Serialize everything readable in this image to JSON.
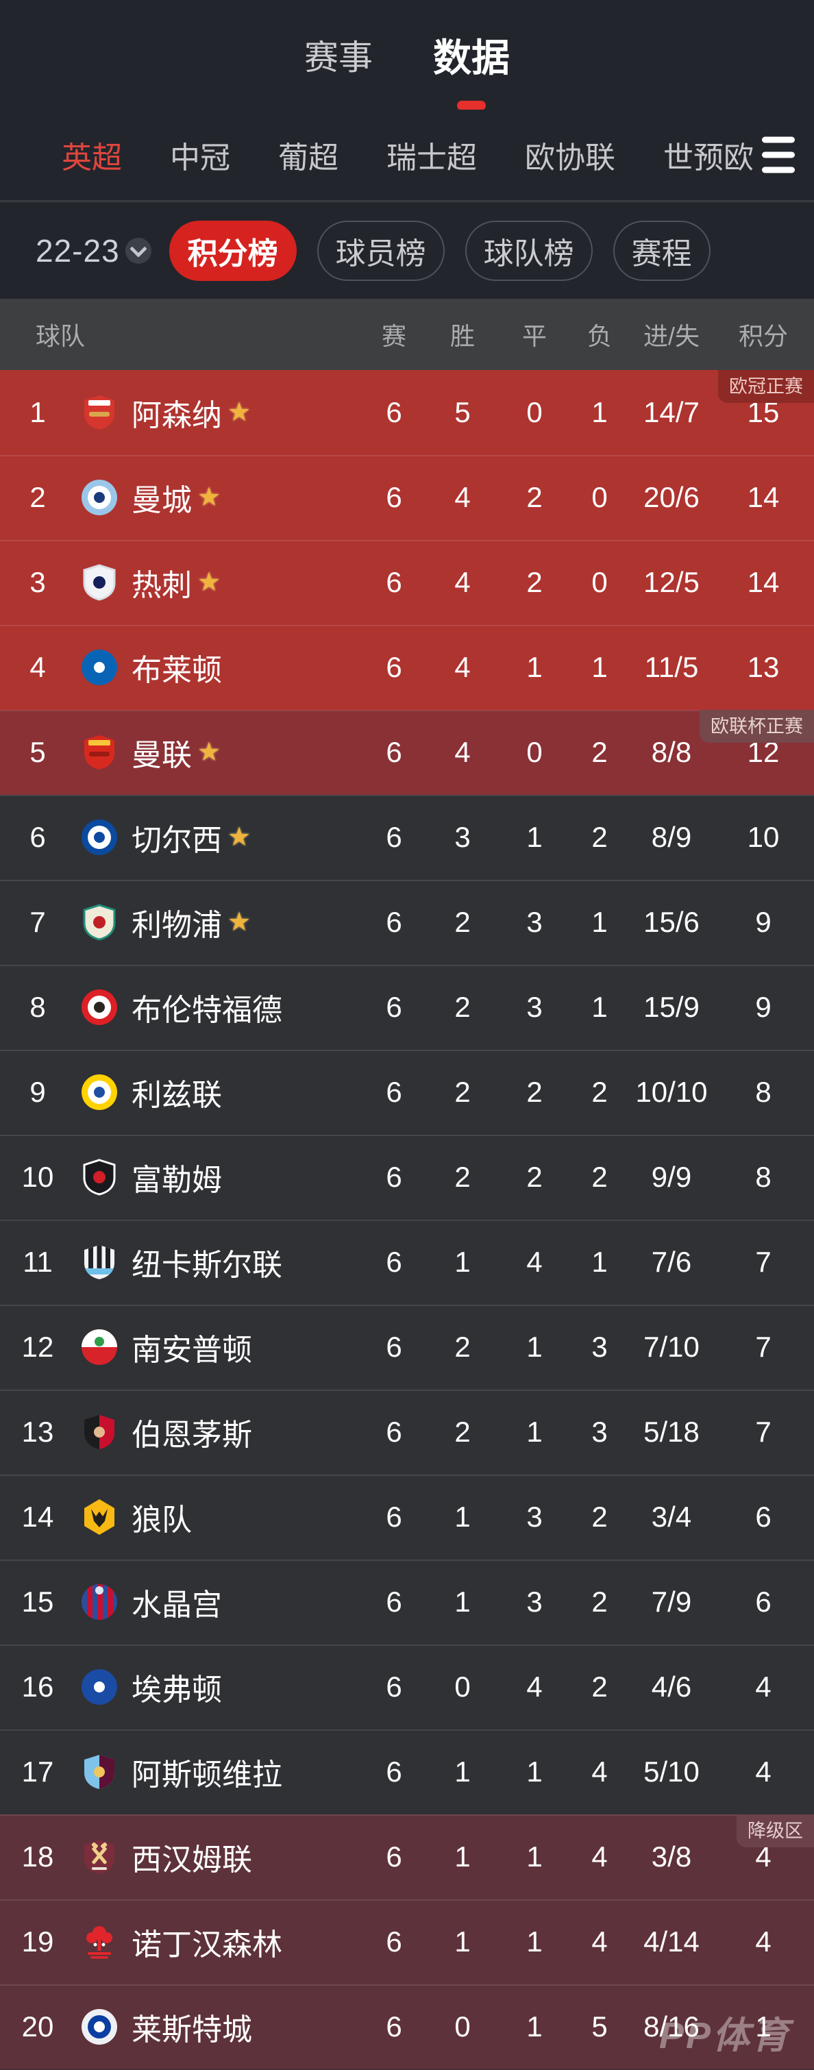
{
  "colors": {
    "accent_red": "#e5302c",
    "pill_red": "#d6231f",
    "top_bg": "#23252c",
    "header_strip_bg": "#3e3f41",
    "row_dark_bg": "#303134",
    "zone_ucl_bg": "#ae3430",
    "zone_uel_bg": "#8a3136",
    "zone_rel_bg": "#5e323a",
    "league_active": "#e0463e"
  },
  "icons": {
    "star": "★",
    "hamburger": "menu",
    "chevron_down": "chevron-down"
  },
  "top_tabs": [
    {
      "label": "赛事",
      "active": false
    },
    {
      "label": "数据",
      "active": true
    }
  ],
  "league_tabs": [
    {
      "label": "英超",
      "active": true
    },
    {
      "label": "中冠",
      "active": false
    },
    {
      "label": "葡超",
      "active": false
    },
    {
      "label": "瑞士超",
      "active": false
    },
    {
      "label": "欧协联",
      "active": false
    },
    {
      "label": "世预欧",
      "active": false
    }
  ],
  "filters": {
    "season": "22-23",
    "pills": [
      {
        "label": "积分榜",
        "active": true
      },
      {
        "label": "球员榜",
        "active": false
      },
      {
        "label": "球队榜",
        "active": false
      },
      {
        "label": "赛程",
        "active": false
      }
    ]
  },
  "table": {
    "columns": [
      "球队",
      "赛",
      "胜",
      "平",
      "负",
      "进/失",
      "积分"
    ],
    "rows": [
      {
        "rank": 1,
        "team": "阿森纳",
        "star": true,
        "zone": "ucl",
        "zone_label": "欧冠正赛",
        "played": 6,
        "win": 5,
        "draw": 0,
        "loss": 1,
        "goals": "14/7",
        "points": 15,
        "logo": {
          "type": "shield-banner",
          "c": [
            "#d6362e",
            "#ffffff",
            "#d9a64a"
          ]
        }
      },
      {
        "rank": 2,
        "team": "曼城",
        "star": true,
        "zone": "ucl",
        "zone_label": "",
        "played": 6,
        "win": 4,
        "draw": 2,
        "loss": 0,
        "goals": "20/6",
        "points": 14,
        "logo": {
          "type": "circle",
          "c": [
            "#9ac7e9",
            "#ffffff",
            "#1b3c7a"
          ]
        }
      },
      {
        "rank": 3,
        "team": "热刺",
        "star": true,
        "zone": "ucl",
        "zone_label": "",
        "played": 6,
        "win": 4,
        "draw": 2,
        "loss": 0,
        "goals": "12/5",
        "points": 14,
        "logo": {
          "type": "shield",
          "c": [
            "#f2f3f6",
            "#d9dce3",
            "#14205a"
          ]
        }
      },
      {
        "rank": 4,
        "team": "布莱顿",
        "star": false,
        "zone": "ucl",
        "zone_label": "",
        "played": 6,
        "win": 4,
        "draw": 1,
        "loss": 1,
        "goals": "11/5",
        "points": 13,
        "logo": {
          "type": "circle",
          "c": [
            "#0a64b6",
            "#0a64b6",
            "#ffffff"
          ]
        }
      },
      {
        "rank": 5,
        "team": "曼联",
        "star": true,
        "zone": "uel",
        "zone_label": "欧联杯正赛",
        "played": 6,
        "win": 4,
        "draw": 0,
        "loss": 2,
        "goals": "8/8",
        "points": 12,
        "logo": {
          "type": "shield-banner",
          "c": [
            "#d8291e",
            "#f6c738",
            "#9c1b12"
          ]
        }
      },
      {
        "rank": 6,
        "team": "切尔西",
        "star": true,
        "zone": "none",
        "zone_label": "",
        "played": 6,
        "win": 3,
        "draw": 1,
        "loss": 2,
        "goals": "8/9",
        "points": 10,
        "logo": {
          "type": "circle",
          "c": [
            "#0b4a9f",
            "#ffffff",
            "#0b4a9f"
          ]
        }
      },
      {
        "rank": 7,
        "team": "利物浦",
        "star": true,
        "zone": "none",
        "zone_label": "",
        "played": 6,
        "win": 2,
        "draw": 3,
        "loss": 1,
        "goals": "15/6",
        "points": 9,
        "logo": {
          "type": "shield",
          "c": [
            "#f0ead9",
            "#1f8f7a",
            "#c01f25"
          ]
        }
      },
      {
        "rank": 8,
        "team": "布伦特福德",
        "star": false,
        "zone": "none",
        "zone_label": "",
        "played": 6,
        "win": 2,
        "draw": 3,
        "loss": 1,
        "goals": "15/9",
        "points": 9,
        "logo": {
          "type": "circle",
          "c": [
            "#dd2026",
            "#ffffff",
            "#2a2622"
          ]
        }
      },
      {
        "rank": 9,
        "team": "利兹联",
        "star": false,
        "zone": "none",
        "zone_label": "",
        "played": 6,
        "win": 2,
        "draw": 2,
        "loss": 2,
        "goals": "10/10",
        "points": 8,
        "logo": {
          "type": "circle",
          "c": [
            "#ffd200",
            "#ffffff",
            "#1d50a3"
          ]
        }
      },
      {
        "rank": 10,
        "team": "富勒姆",
        "star": false,
        "zone": "none",
        "zone_label": "",
        "played": 6,
        "win": 2,
        "draw": 2,
        "loss": 2,
        "goals": "9/9",
        "points": 8,
        "logo": {
          "type": "shield",
          "c": [
            "#1a1a1e",
            "#ffffff",
            "#d01f26"
          ]
        }
      },
      {
        "rank": 11,
        "team": "纽卡斯尔联",
        "star": false,
        "zone": "none",
        "zone_label": "",
        "played": 6,
        "win": 1,
        "draw": 4,
        "loss": 1,
        "goals": "7/6",
        "points": 7,
        "logo": {
          "type": "shield-stripes",
          "c": [
            "#f2f3f5",
            "#202227",
            "#6fc0e8"
          ]
        }
      },
      {
        "rank": 12,
        "team": "南安普顿",
        "star": false,
        "zone": "none",
        "zone_label": "",
        "played": 6,
        "win": 2,
        "draw": 1,
        "loss": 3,
        "goals": "7/10",
        "points": 7,
        "logo": {
          "type": "circle-half",
          "c": [
            "#d8232a",
            "#ffffff",
            "#2e9e49"
          ]
        }
      },
      {
        "rank": 13,
        "team": "伯恩茅斯",
        "star": false,
        "zone": "none",
        "zone_label": "",
        "played": 6,
        "win": 2,
        "draw": 1,
        "loss": 3,
        "goals": "5/18",
        "points": 7,
        "logo": {
          "type": "shield-split",
          "c": [
            "#1c1c1f",
            "#c8102e",
            "#e4b98e"
          ]
        }
      },
      {
        "rank": 14,
        "team": "狼队",
        "star": false,
        "zone": "none",
        "zone_label": "",
        "played": 6,
        "win": 1,
        "draw": 3,
        "loss": 2,
        "goals": "3/4",
        "points": 6,
        "logo": {
          "type": "hex",
          "c": [
            "#f8b914",
            "#24201b"
          ]
        }
      },
      {
        "rank": 15,
        "team": "水晶宫",
        "star": false,
        "zone": "none",
        "zone_label": "",
        "played": 6,
        "win": 1,
        "draw": 3,
        "loss": 2,
        "goals": "7/9",
        "points": 6,
        "logo": {
          "type": "circle-stripes",
          "c": [
            "#2b4d9b",
            "#c8102e",
            "#dfe5f2"
          ]
        }
      },
      {
        "rank": 16,
        "team": "埃弗顿",
        "star": false,
        "zone": "none",
        "zone_label": "",
        "played": 6,
        "win": 0,
        "draw": 4,
        "loss": 2,
        "goals": "4/6",
        "points": 4,
        "logo": {
          "type": "circle",
          "c": [
            "#1a4ba5",
            "#1a4ba5",
            "#ffffff"
          ]
        }
      },
      {
        "rank": 17,
        "team": "阿斯顿维拉",
        "star": false,
        "zone": "none",
        "zone_label": "",
        "played": 6,
        "win": 1,
        "draw": 1,
        "loss": 4,
        "goals": "5/10",
        "points": 4,
        "logo": {
          "type": "shield-split",
          "c": [
            "#7fc3ea",
            "#5d1035",
            "#f0c75e"
          ]
        }
      },
      {
        "rank": 18,
        "team": "西汉姆联",
        "star": false,
        "zone": "rel",
        "zone_label": "降级区",
        "played": 6,
        "win": 1,
        "draw": 1,
        "loss": 4,
        "goals": "3/8",
        "points": 4,
        "logo": {
          "type": "shield-hammers",
          "c": [
            "#7b2d3c",
            "#f0d08a",
            "#e9e2d8"
          ]
        }
      },
      {
        "rank": 19,
        "team": "诺丁汉森林",
        "star": false,
        "zone": "rel",
        "zone_label": "",
        "played": 6,
        "win": 1,
        "draw": 1,
        "loss": 4,
        "goals": "4/14",
        "points": 4,
        "logo": {
          "type": "tree",
          "c": [
            "#e0262b",
            "#ffffff"
          ]
        }
      },
      {
        "rank": 20,
        "team": "莱斯特城",
        "star": false,
        "zone": "rel",
        "zone_label": "",
        "played": 6,
        "win": 0,
        "draw": 1,
        "loss": 5,
        "goals": "8/16",
        "points": 1,
        "logo": {
          "type": "circle",
          "c": [
            "#eef0f4",
            "#0a3ea0",
            "#ffffff"
          ]
        }
      }
    ]
  },
  "watermark": "PP体育"
}
